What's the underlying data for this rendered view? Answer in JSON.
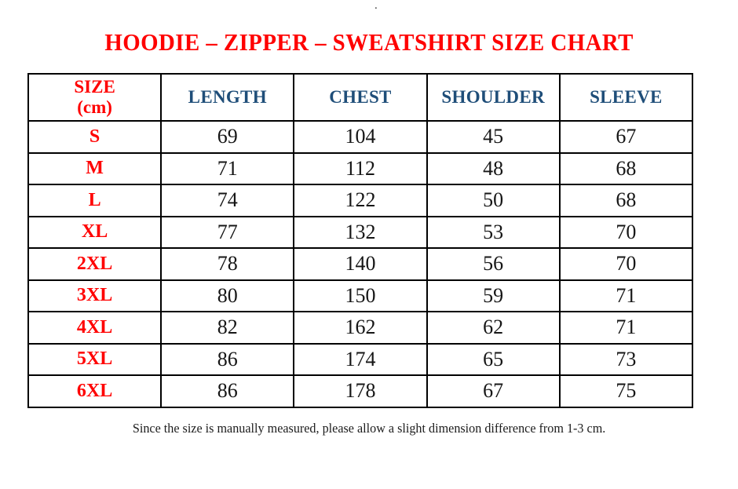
{
  "page": {
    "stray_dot": ".",
    "title": "HOODIE – ZIPPER – SWEATSHIRT SIZE CHART",
    "footer_note": "Since the size is manually measured, please allow a slight dimension difference from 1-3 cm."
  },
  "colors": {
    "title_red": "#FF0000",
    "size_label_red": "#FF0000",
    "header_blue": "#1F4E79",
    "body_text": "#161616",
    "border": "#000000",
    "background": "#FFFFFF"
  },
  "table": {
    "header": {
      "size_line1": "SIZE",
      "size_line2": "(cm)",
      "columns": [
        "LENGTH",
        "CHEST",
        "SHOULDER",
        "SLEEVE"
      ]
    },
    "rows": [
      {
        "size": "S",
        "length": "69",
        "chest": "104",
        "shoulder": "45",
        "sleeve": "67"
      },
      {
        "size": "M",
        "length": "71",
        "chest": "112",
        "shoulder": "48",
        "sleeve": "68"
      },
      {
        "size": "L",
        "length": "74",
        "chest": "122",
        "shoulder": "50",
        "sleeve": "68"
      },
      {
        "size": "XL",
        "length": "77",
        "chest": "132",
        "shoulder": "53",
        "sleeve": "70"
      },
      {
        "size": "2XL",
        "length": "78",
        "chest": "140",
        "shoulder": "56",
        "sleeve": "70"
      },
      {
        "size": "3XL",
        "length": "80",
        "chest": "150",
        "shoulder": "59",
        "sleeve": "71"
      },
      {
        "size": "4XL",
        "length": "82",
        "chest": "162",
        "shoulder": "62",
        "sleeve": "71"
      },
      {
        "size": "5XL",
        "length": "86",
        "chest": "174",
        "shoulder": "65",
        "sleeve": "73"
      },
      {
        "size": "6XL",
        "length": "86",
        "chest": "178",
        "shoulder": "67",
        "sleeve": "75"
      }
    ]
  }
}
